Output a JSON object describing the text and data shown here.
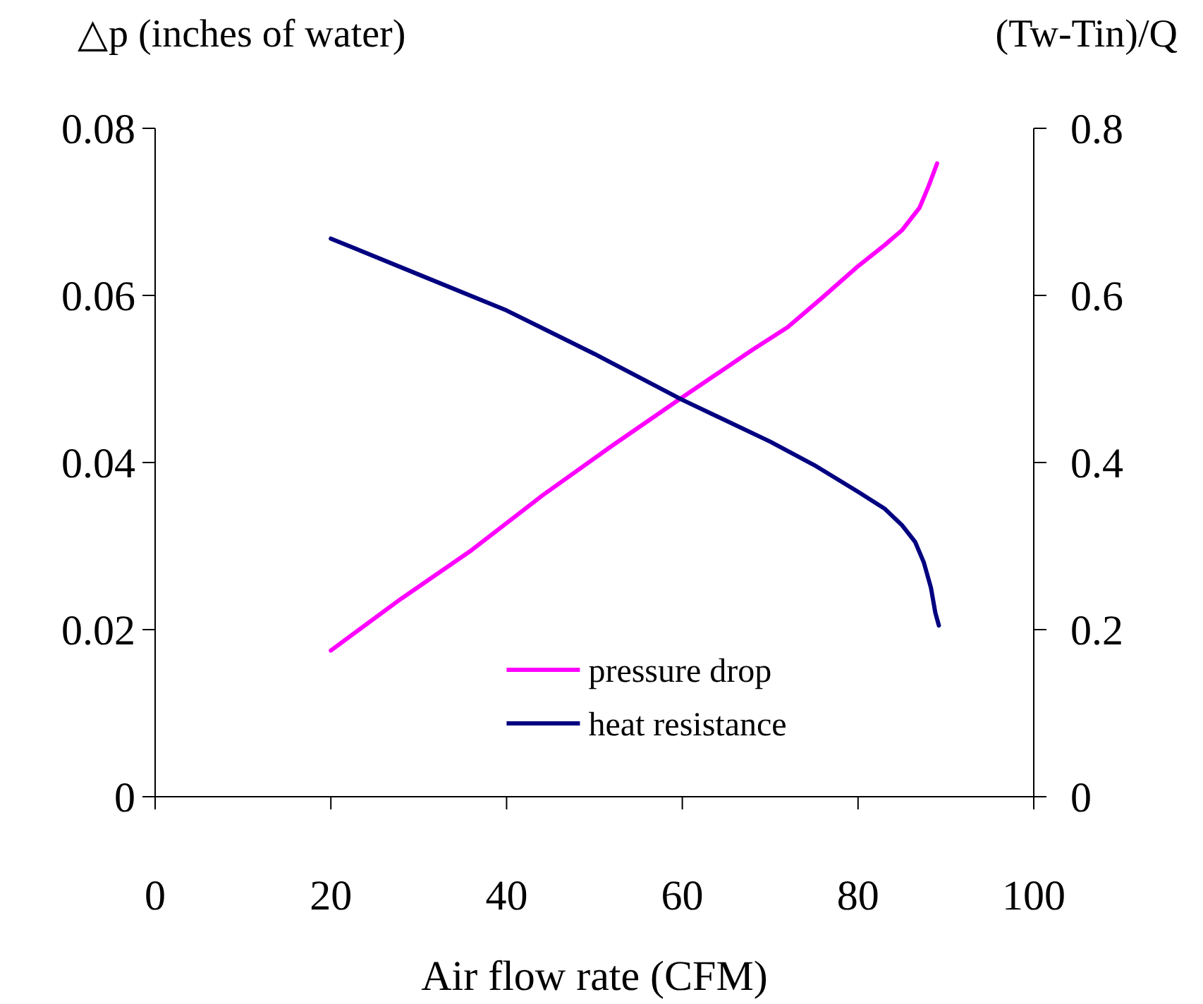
{
  "chart_data": {
    "type": "line",
    "xlabel": "Air flow rate (CFM)",
    "ylabel": "△p (inches of water)",
    "y2label": "(Tw-Tin)/Q",
    "xlim": [
      0,
      100
    ],
    "xticks": [
      0,
      20,
      40,
      60,
      80,
      100
    ],
    "ylim": [
      0,
      0.08
    ],
    "yticks": [
      0,
      0.02,
      0.04,
      0.06,
      0.08
    ],
    "y2lim": [
      0,
      0.8
    ],
    "y2ticks": [
      0,
      0.2,
      0.4,
      0.6,
      0.8
    ],
    "grid": false,
    "legend": "bottom",
    "marker": "none",
    "series": [
      {
        "name": "pressure drop",
        "color": "#ff00ff",
        "x": [
          20,
          28,
          36,
          44,
          52,
          60,
          68,
          72,
          76,
          80,
          83,
          85,
          87,
          88,
          89
        ],
        "values": [
          0.0175,
          0.0237,
          0.0295,
          0.036,
          0.042,
          0.0478,
          0.0535,
          0.0562,
          0.0598,
          0.0635,
          0.066,
          0.0678,
          0.0705,
          0.073,
          0.0758
        ]
      },
      {
        "name": "heat resistance",
        "color": "#000080",
        "axis": "y2",
        "x": [
          20,
          30,
          40,
          50,
          60,
          70,
          75,
          80,
          83,
          85,
          86.5,
          87.5,
          88.3,
          88.8,
          89.2
        ],
        "values": [
          0.668,
          0.625,
          0.582,
          0.53,
          0.475,
          0.425,
          0.397,
          0.365,
          0.345,
          0.325,
          0.305,
          0.28,
          0.25,
          0.22,
          0.205
        ]
      }
    ]
  }
}
